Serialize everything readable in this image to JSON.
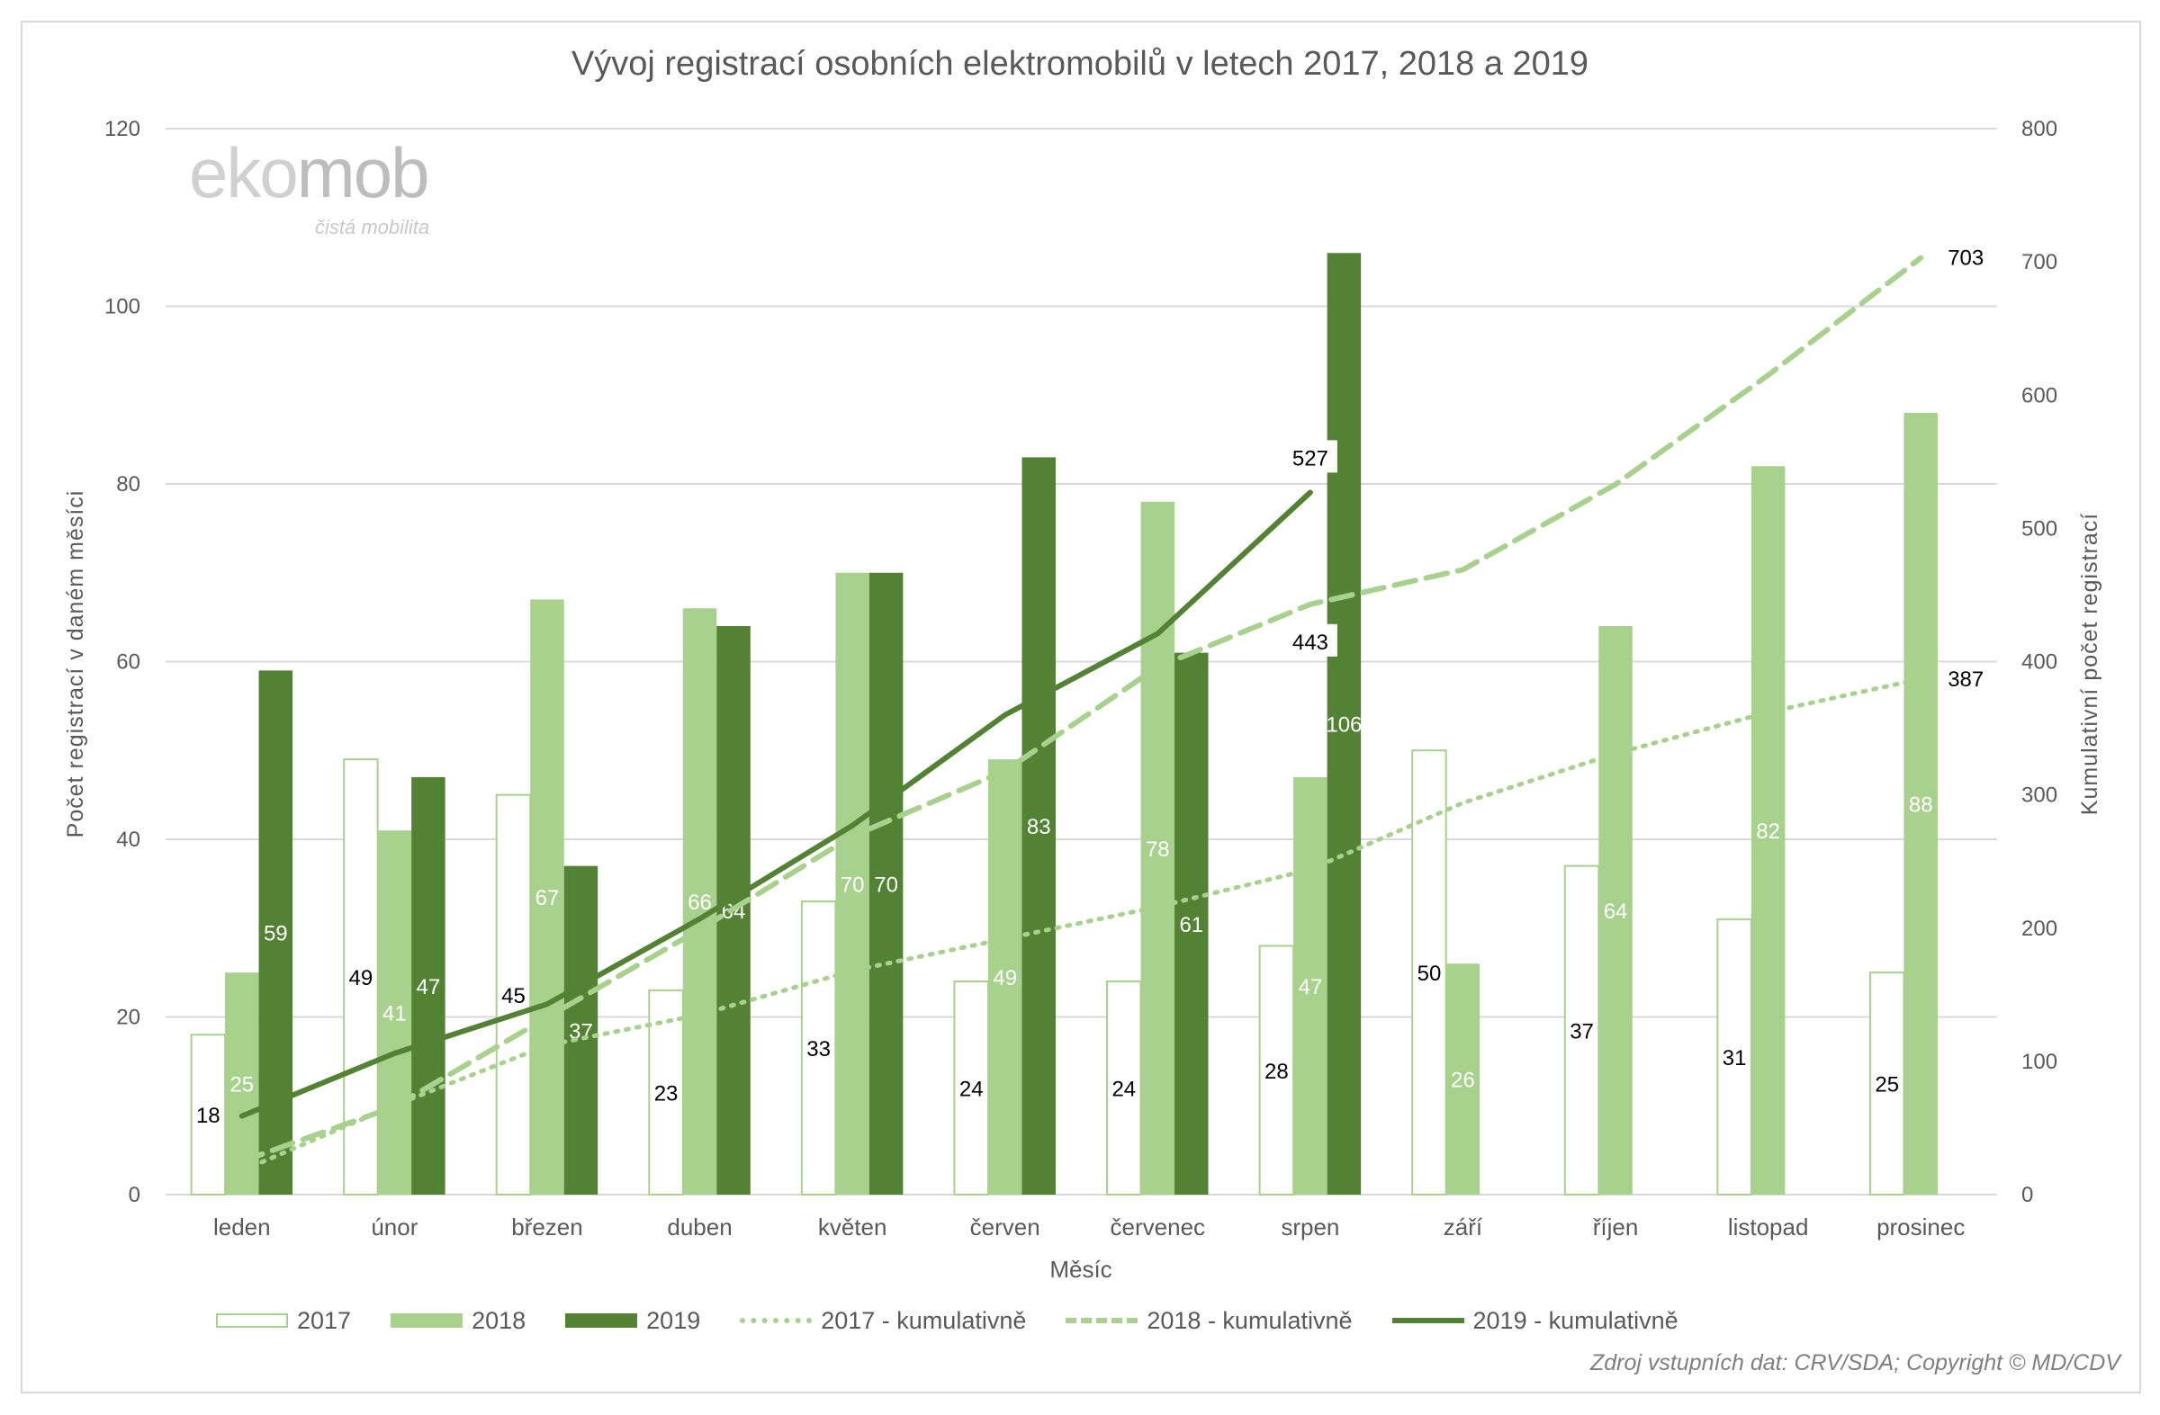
{
  "chart_data": {
    "type": "bar",
    "title": "Vývoj registrací osobních elektromobilů v letech 2017, 2018 a 2019",
    "xlabel": "Měsíc",
    "ylabel": "Počet registrací v daném měsíci",
    "y2label": "Kumulativní počet registrací",
    "ylim": [
      0,
      120
    ],
    "y_ticks": [
      0,
      20,
      40,
      60,
      80,
      100,
      120
    ],
    "y2lim": [
      0,
      800
    ],
    "y2_ticks": [
      0,
      100,
      200,
      300,
      400,
      500,
      600,
      700,
      800
    ],
    "grid": true,
    "legend_position": "bottom",
    "categories": [
      "leden",
      "únor",
      "březen",
      "duben",
      "květen",
      "červen",
      "červenec",
      "srpen",
      "září",
      "říjen",
      "listopad",
      "prosinec"
    ],
    "series": [
      {
        "name": "2017",
        "type": "bar",
        "axis": "left",
        "color": "#ffffff",
        "stroke": "#a9d18e",
        "values": [
          18,
          49,
          45,
          23,
          33,
          24,
          24,
          28,
          50,
          37,
          31,
          25
        ]
      },
      {
        "name": "2018",
        "type": "bar",
        "axis": "left",
        "color": "#a9d18e",
        "values": [
          25,
          41,
          67,
          66,
          70,
          49,
          78,
          47,
          26,
          64,
          82,
          88
        ]
      },
      {
        "name": "2019",
        "type": "bar",
        "axis": "left",
        "color": "#548235",
        "values": [
          59,
          47,
          37,
          64,
          70,
          83,
          61,
          106,
          null,
          null,
          null,
          null
        ]
      },
      {
        "name": "2017 - kumulativně",
        "type": "line",
        "style": "dotted",
        "axis": "right",
        "color": "#a9d18e",
        "values": [
          18,
          67,
          112,
          135,
          168,
          192,
          216,
          244,
          294,
          331,
          362,
          387
        ],
        "end_label": "387"
      },
      {
        "name": "2018 - kumulativně",
        "type": "line",
        "style": "dashed",
        "axis": "right",
        "color": "#a9d18e",
        "values": [
          25,
          66,
          133,
          199,
          269,
          318,
          396,
          443,
          469,
          533,
          615,
          703
        ],
        "end_label": "703",
        "extra_label": "443"
      },
      {
        "name": "2019 - kumulativně",
        "type": "line",
        "style": "solid",
        "axis": "right",
        "color": "#548235",
        "values": [
          59,
          106,
          143,
          207,
          277,
          360,
          421,
          527,
          null,
          null,
          null,
          null
        ],
        "end_label": "527"
      }
    ]
  },
  "logo": {
    "main": "ekomob",
    "main_a": "eko",
    "main_b": "mob",
    "tagline": "čistá mobilita"
  },
  "source": "Zdroj vstupních dat: CRV/SDA; Copyright © MD/CDV"
}
